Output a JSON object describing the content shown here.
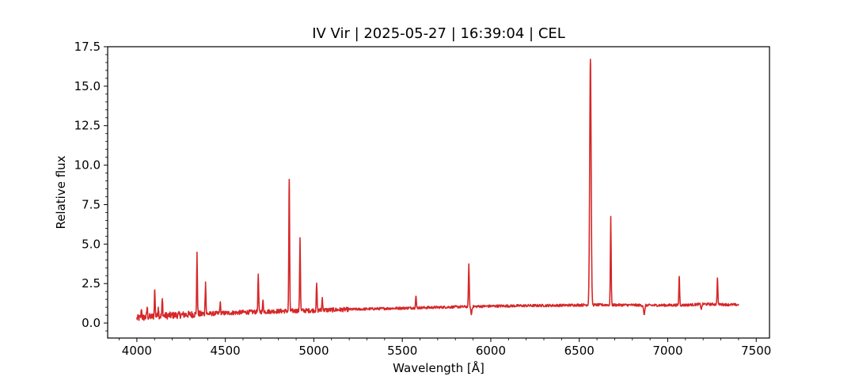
{
  "chart_data": {
    "type": "line",
    "title": "IV Vir | 2025-05-27 | 16:39:04 | CEL",
    "xlabel": "Wavelength [Å]",
    "ylabel": "Relative flux",
    "xlim": [
      3835,
      7575
    ],
    "ylim": [
      -0.95,
      17.5
    ],
    "xticks": [
      4000,
      4500,
      5000,
      5500,
      6000,
      6500,
      7000,
      7500
    ],
    "yticks": [
      0.0,
      2.5,
      5.0,
      7.5,
      10.0,
      12.5,
      15.0,
      17.5
    ],
    "xtick_labels": [
      "4000",
      "4500",
      "5000",
      "5500",
      "6000",
      "6500",
      "7000",
      "7500"
    ],
    "ytick_labels": [
      "0.0",
      "2.5",
      "5.0",
      "7.5",
      "10.0",
      "12.5",
      "15.0",
      "17.5"
    ],
    "grid": false,
    "series": [
      {
        "color": "#d62728",
        "x": [
          4000,
          4100,
          4250,
          4400,
          4600,
          4800,
          5000,
          5200,
          5400,
          5600,
          5800,
          6000,
          6200,
          6400,
          6540,
          6600,
          6800,
          6860,
          7000,
          7100,
          7200,
          7300,
          7400
        ],
        "continuum": [
          0.3,
          0.42,
          0.52,
          0.58,
          0.68,
          0.75,
          0.8,
          0.86,
          0.92,
          0.97,
          1.02,
          1.07,
          1.1,
          1.12,
          1.15,
          1.15,
          1.14,
          1.12,
          1.13,
          1.14,
          1.2,
          1.18,
          1.15
        ],
        "emission_lines": [
          {
            "x": 4026,
            "y": 0.85
          },
          {
            "x": 4058,
            "y": 1.0
          },
          {
            "x": 4101,
            "y": 2.1
          },
          {
            "x": 4121,
            "y": 1.0
          },
          {
            "x": 4144,
            "y": 1.5
          },
          {
            "x": 4340,
            "y": 4.3
          },
          {
            "x": 4388,
            "y": 2.6
          },
          {
            "x": 4471,
            "y": 1.3
          },
          {
            "x": 4686,
            "y": 3.1
          },
          {
            "x": 4713,
            "y": 1.45
          },
          {
            "x": 4861,
            "y": 9.1
          },
          {
            "x": 4922,
            "y": 5.4
          },
          {
            "x": 5016,
            "y": 2.5
          },
          {
            "x": 5048,
            "y": 1.6
          },
          {
            "x": 5577,
            "y": 1.7
          },
          {
            "x": 5876,
            "y": 3.75
          },
          {
            "x": 6563,
            "y": 16.7
          },
          {
            "x": 6678,
            "y": 6.75
          },
          {
            "x": 7065,
            "y": 2.95
          },
          {
            "x": 7281,
            "y": 2.85
          }
        ],
        "absorption_dips": [
          {
            "x": 5890,
            "y": 0.55
          },
          {
            "x": 6867,
            "y": 0.45
          },
          {
            "x": 7190,
            "y": 0.9
          }
        ]
      }
    ]
  }
}
